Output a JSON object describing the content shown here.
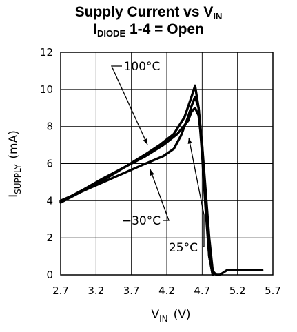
{
  "chart_data": {
    "type": "line",
    "title_main": "Supply Current vs V",
    "title_main_sub": "IN",
    "subtitle_pre": "I",
    "subtitle_sub": "DIODE",
    "subtitle_post": " 1-4 = Open",
    "xlabel_main": "V",
    "xlabel_sub": "IN",
    "xlabel_unit": "(V)",
    "ylabel_main": "I",
    "ylabel_sub": "SUPPLY",
    "ylabel_unit": "(mA)",
    "xlim": [
      2.7,
      5.7
    ],
    "ylim": [
      0,
      12
    ],
    "x_ticks": [
      2.7,
      3.2,
      3.7,
      4.2,
      4.7,
      5.2,
      5.7
    ],
    "x_tick_labels": [
      "2.7",
      "3.2",
      "3.7",
      "4.2",
      "4.7",
      "5.2",
      "5.7"
    ],
    "y_ticks": [
      0,
      2,
      4,
      6,
      8,
      10,
      12
    ],
    "y_tick_labels": [
      "0",
      "2",
      "4",
      "6",
      "8",
      "10",
      "12"
    ],
    "grid": true,
    "series": [
      {
        "name": "100°C",
        "x": [
          2.7,
          3.0,
          3.3,
          3.6,
          3.9,
          4.1,
          4.3,
          4.45,
          4.55,
          4.6,
          4.65,
          4.7,
          4.75,
          4.8,
          4.85
        ],
        "y": [
          3.9,
          4.5,
          5.1,
          5.8,
          6.5,
          7.0,
          7.6,
          8.5,
          9.6,
          10.2,
          9.0,
          6.5,
          3.5,
          1.0,
          0.0
        ]
      },
      {
        "name": "-30°C",
        "x": [
          2.7,
          3.0,
          3.3,
          3.6,
          3.9,
          4.15,
          4.3,
          4.4,
          4.5,
          4.55,
          4.6,
          4.65,
          4.7,
          4.75,
          4.8,
          4.85
        ],
        "y": [
          4.0,
          4.5,
          5.0,
          5.5,
          6.0,
          6.4,
          6.8,
          7.5,
          8.5,
          9.1,
          9.6,
          9.0,
          7.0,
          4.0,
          1.0,
          0.0
        ]
      },
      {
        "name": "25°C",
        "x": [
          2.7,
          3.0,
          3.3,
          3.6,
          3.9,
          4.15,
          4.35,
          4.5,
          4.55,
          4.6,
          4.65,
          4.7,
          4.75,
          4.8,
          4.85,
          4.9,
          4.95,
          5.05,
          5.3,
          5.55
        ],
        "y": [
          3.95,
          4.55,
          5.2,
          5.8,
          6.4,
          7.0,
          7.6,
          8.3,
          8.8,
          9.0,
          8.6,
          7.0,
          4.5,
          2.0,
          0.2,
          0.0,
          0.0,
          0.25,
          0.25,
          0.25
        ]
      }
    ],
    "annotations": [
      {
        "text": "100°C",
        "series": "100°C"
      },
      {
        "text": "−30°C",
        "series": "-30°C"
      },
      {
        "text": "25°C",
        "series": "25°C"
      }
    ]
  }
}
